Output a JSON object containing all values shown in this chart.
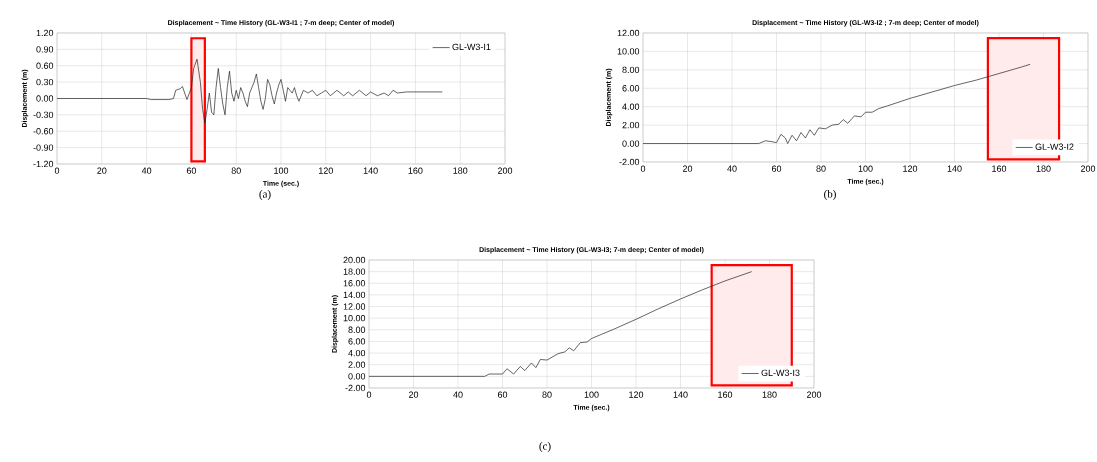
{
  "chart_data": [
    {
      "type": "line",
      "title": "Displacement ~ Time History (GL-W3-I1 ; 7-m deep; Center of model)",
      "xlabel": "Time (sec.)",
      "ylabel": "Displacement (m)",
      "annotations": [
        "(a)"
      ],
      "grid": true,
      "legend": "top right",
      "xlim": [
        0,
        200
      ],
      "xticks": [
        0,
        20,
        40,
        60,
        80,
        100,
        120,
        140,
        160,
        180,
        200
      ],
      "ylim": [
        -1.2,
        1.2
      ],
      "yticks": [
        {
          "value": -1.2,
          "label": "-1.20"
        },
        {
          "value": -0.9,
          "label": "-0.90"
        },
        {
          "value": -0.6,
          "label": "-0.60"
        },
        {
          "value": -0.3,
          "label": "-0.30"
        },
        {
          "value": 0,
          "label": "0.00"
        },
        {
          "value": 0.3,
          "label": "0.30"
        },
        {
          "value": 0.6,
          "label": "0.60"
        },
        {
          "value": 0.9,
          "label": "0.90"
        },
        {
          "value": 1.2,
          "label": "1.20"
        }
      ],
      "bands": [
        {
          "axis": "x",
          "from": 60,
          "to": 66,
          "color": "#ff0000"
        }
      ],
      "series": [
        {
          "name": "GL-W3-I1",
          "color": "#222222",
          "x": [
            0,
            40,
            42,
            50,
            52,
            53,
            55,
            56,
            57,
            58,
            60,
            61,
            62.5,
            64,
            65,
            66,
            67,
            68,
            69,
            70,
            71,
            72,
            73,
            74,
            75,
            76,
            77,
            78,
            79,
            80,
            81,
            82,
            83,
            84,
            85,
            86,
            88,
            89,
            90,
            91,
            92,
            93,
            94,
            95,
            96,
            97,
            98,
            99,
            100,
            101,
            102,
            103,
            104,
            105,
            106,
            107,
            108,
            110,
            112,
            114,
            116,
            118,
            120,
            122,
            125,
            128,
            130,
            132,
            135,
            138,
            140,
            143,
            146,
            148,
            150,
            152,
            156,
            172
          ],
          "values": [
            0,
            0,
            -0.02,
            -0.02,
            0,
            0.15,
            0.18,
            0.22,
            0.1,
            -0.02,
            0.2,
            0.55,
            0.72,
            0.3,
            -0.2,
            -0.45,
            -0.2,
            0.1,
            -0.25,
            -0.3,
            0.2,
            0.55,
            0.2,
            -0.1,
            -0.3,
            0.2,
            0.5,
            0.1,
            -0.05,
            0.15,
            0,
            0.2,
            0.1,
            -0.05,
            -0.15,
            0.1,
            0.3,
            0.45,
            0.2,
            -0.05,
            -0.2,
            0,
            0.35,
            0.25,
            0.05,
            -0.1,
            0.1,
            0.25,
            0.35,
            0.15,
            -0.05,
            0.2,
            0.15,
            0.1,
            0.2,
            0.05,
            -0.05,
            0.15,
            0.1,
            0.15,
            0.05,
            0.1,
            0.15,
            0.05,
            0.15,
            0.05,
            0.12,
            0.05,
            0.15,
            0.05,
            0.12,
            0.05,
            0.1,
            0.05,
            0.15,
            0.1,
            0.12,
            0.12
          ]
        }
      ]
    },
    {
      "type": "line",
      "title": "Displacement ~ Time History (GL-W3-I2 ; 7-m deep; Center of model)",
      "xlabel": "Time (sec.)",
      "ylabel": "Displacement (m)",
      "annotations": [
        "(b)"
      ],
      "grid": true,
      "legend": "bottom right",
      "xlim": [
        0,
        200
      ],
      "xticks": [
        0,
        20,
        40,
        60,
        80,
        100,
        120,
        140,
        160,
        180,
        200
      ],
      "ylim": [
        -2,
        12
      ],
      "yticks": [
        {
          "value": -2,
          "label": "-2.00"
        },
        {
          "value": 0,
          "label": "0.00"
        },
        {
          "value": 2,
          "label": "2.00"
        },
        {
          "value": 4,
          "label": "4.00"
        },
        {
          "value": 6,
          "label": "6.00"
        },
        {
          "value": 8,
          "label": "8.00"
        },
        {
          "value": 10,
          "label": "10.00"
        },
        {
          "value": 12,
          "label": "12.00"
        }
      ],
      "bands": [
        {
          "axis": "x",
          "from": 155,
          "to": 187,
          "color": "#ff0000"
        }
      ],
      "series": [
        {
          "name": "GL-W3-I2",
          "color": "#222222",
          "x": [
            0,
            52,
            55,
            58,
            60,
            62,
            64,
            65,
            67,
            69,
            71,
            73,
            75,
            77,
            79,
            82,
            85,
            88,
            90,
            92,
            95,
            98,
            100,
            103,
            106,
            110,
            120,
            130,
            140,
            150,
            160,
            170,
            174
          ],
          "values": [
            0,
            0,
            0.3,
            0.2,
            0.1,
            1.0,
            0.6,
            0,
            0.9,
            0.3,
            1.2,
            0.6,
            1.5,
            0.9,
            1.7,
            1.6,
            2.0,
            2.1,
            2.6,
            2.2,
            3.0,
            2.9,
            3.4,
            3.4,
            3.8,
            4.1,
            4.9,
            5.6,
            6.3,
            6.9,
            7.6,
            8.3,
            8.6
          ]
        }
      ]
    },
    {
      "type": "line",
      "title": "Displacement ~ Time History (GL-W3-I3; 7-m deep; Center of model)",
      "xlabel": "Time (sec.)",
      "ylabel": "Displacement (m)",
      "annotations": [
        "(c)"
      ],
      "grid": true,
      "legend": "bottom right",
      "xlim": [
        0,
        200
      ],
      "xticks": [
        0,
        20,
        40,
        60,
        80,
        100,
        120,
        140,
        160,
        180,
        200
      ],
      "ylim": [
        -2,
        20
      ],
      "yticks": [
        {
          "value": -2,
          "label": "-2.00"
        },
        {
          "value": 0,
          "label": "0.00"
        },
        {
          "value": 2,
          "label": "2.00"
        },
        {
          "value": 4,
          "label": "4.00"
        },
        {
          "value": 6,
          "label": "6.00"
        },
        {
          "value": 8,
          "label": "8.00"
        },
        {
          "value": 10,
          "label": "10.00"
        },
        {
          "value": 12,
          "label": "12.00"
        },
        {
          "value": 14,
          "label": "14.00"
        },
        {
          "value": 16,
          "label": "16.00"
        },
        {
          "value": 18,
          "label": "18.00"
        },
        {
          "value": 20,
          "label": "20.00"
        }
      ],
      "bands": [
        {
          "axis": "x",
          "from": 154,
          "to": 190,
          "color": "#ff0000"
        }
      ],
      "series": [
        {
          "name": "GL-W3-I3",
          "color": "#222222",
          "x": [
            0,
            52,
            54,
            60,
            62,
            65,
            68,
            70,
            73,
            75,
            77,
            80,
            85,
            88,
            90,
            92,
            95,
            98,
            100,
            105,
            110,
            120,
            130,
            140,
            150,
            160,
            172
          ],
          "values": [
            0,
            0,
            0.4,
            0.4,
            1.3,
            0.4,
            1.7,
            1.0,
            2.3,
            1.5,
            2.9,
            2.8,
            3.9,
            4.2,
            4.9,
            4.4,
            5.8,
            5.9,
            6.5,
            7.3,
            8.1,
            9.8,
            11.6,
            13.3,
            14.9,
            16.4,
            18.0
          ]
        }
      ]
    }
  ]
}
